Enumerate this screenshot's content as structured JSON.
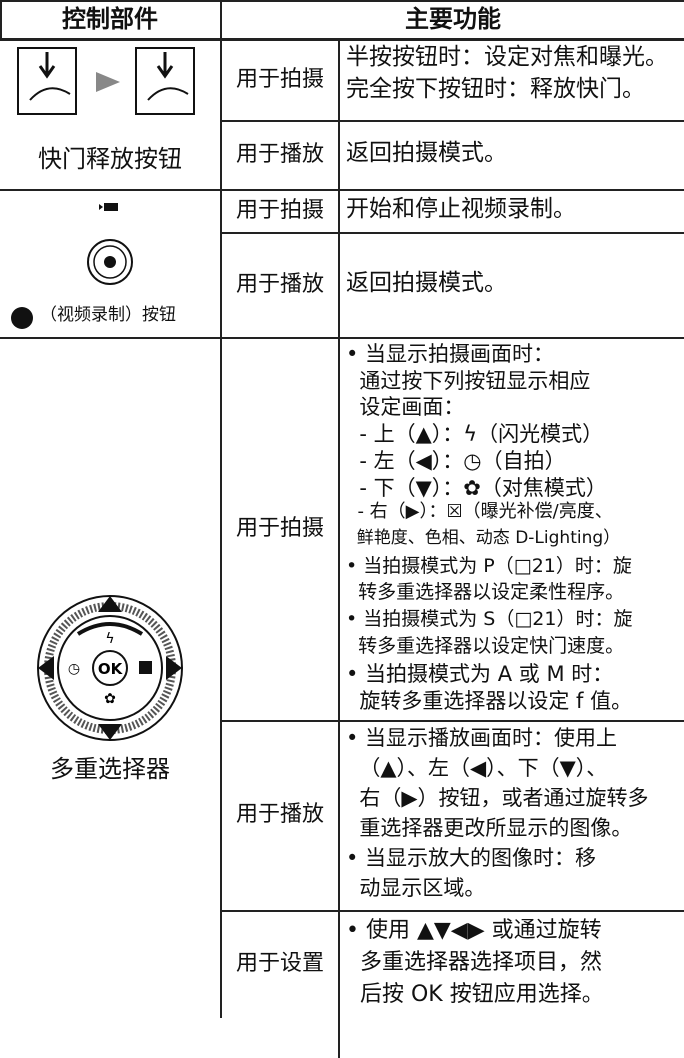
{
  "table": {
    "header": {
      "control": "控制部件",
      "function": "主要功能"
    },
    "rows": [
      {
        "control": "快门释放按钮",
        "functions": [
          {
            "mode": "用于拍摄",
            "lines": [
              "半按按钮时：设定对焦和曝光。",
              "完全按下按钮时：释放快门。"
            ]
          },
          {
            "mode": "用于播放",
            "lines": [
              "返回拍摄模式。"
            ]
          }
        ]
      },
      {
        "control": "（视频录制）按钮",
        "functions": [
          {
            "mode": "用于拍摄",
            "lines": [
              "开始和停止视频录制。"
            ]
          },
          {
            "mode": "用于播放",
            "lines": [
              "返回拍摄模式。"
            ]
          }
        ]
      },
      {
        "control": "多重选择器",
        "functions": [
          {
            "mode": "用于拍摄",
            "lines": [
              "• 当显示拍摄画面时：",
              "  通过按下列按钮显示相应",
              "  设定画面：",
              "  - 上（▲）：ϟ（闪光模式）",
              "  - 左（◀）：◷（自拍）",
              "  - 下（▼）：✿（对焦模式）",
              "  - 右（▶）：☒（曝光补偿/亮度、",
              "  鲜艳度、色相、动态 D-Lighting）",
              "• 当拍摄模式为 P（□21）时：旋",
              "  转多重选择器以设定柔性程序。",
              "• 当拍摄模式为 S（□21）时：旋",
              "  转多重选择器以设定快门速度。",
              "• 当拍摄模式为 A 或 M 时：",
              "  旋转多重选择器以设定 f 值。"
            ]
          },
          {
            "mode": "用于播放",
            "lines": [
              "• 当显示播放画面时：使用上",
              "  （▲）、左（◀）、下（▼）、",
              "  右（▶）按钮，或者通过旋转多",
              "  重选择器更改所显示的图像。",
              "• 当显示放大的图像时：移",
              "  动显示区域。"
            ]
          },
          {
            "mode": "用于设置",
            "lines": [
              "• 使用 ▲▼◀▶ 或通过旋转",
              "  多重选择器选择项目，然",
              "  后按 OK 按钮应用选择。"
            ]
          }
        ]
      }
    ]
  }
}
